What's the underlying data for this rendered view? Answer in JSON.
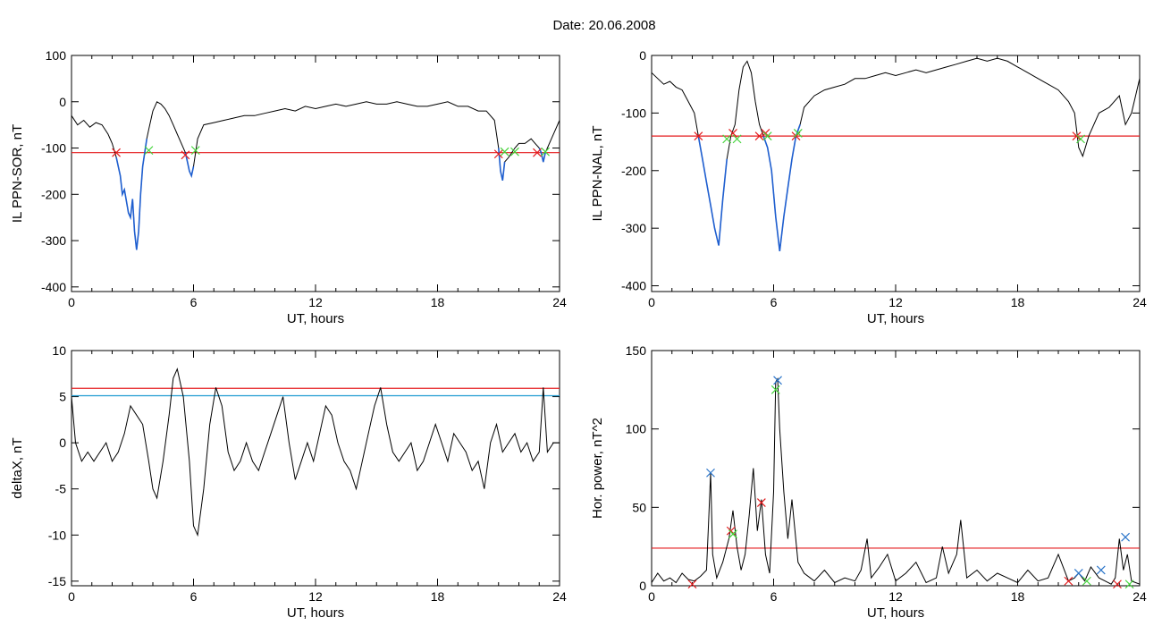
{
  "figure": {
    "header": "Date:  20.06.2008"
  },
  "colors": {
    "line": "#000000",
    "threshold": "#e41a1c",
    "secondary_threshold": "#1f9bd1",
    "segment": "#1f5fd0",
    "marker_red": "#e41a1c",
    "marker_green": "#43d43a",
    "marker_blue": "#2a74c9"
  },
  "chart_data": [
    {
      "type": "line",
      "xlabel": "UT, hours",
      "ylabel": "IL PPN-SOR, nT",
      "xlim": [
        0,
        24
      ],
      "ylim": [
        -410,
        100
      ],
      "xticks": [
        0,
        6,
        12,
        18,
        24
      ],
      "yticks": [
        100,
        0,
        -100,
        -200,
        -300,
        -400
      ],
      "threshold": -110,
      "series": [
        {
          "x": [
            0,
            0.3,
            0.6,
            0.9,
            1.2,
            1.5,
            1.8,
            2.0,
            2.2,
            2.4,
            2.5,
            2.6,
            2.8,
            2.9,
            3.0,
            3.1,
            3.2,
            3.3,
            3.4,
            3.5,
            3.6,
            3.7,
            3.8,
            3.9,
            4.0,
            4.2,
            4.4,
            4.6,
            4.8,
            5.0,
            5.2,
            5.4,
            5.6,
            5.7,
            5.8,
            5.9,
            6.0,
            6.2,
            6.5,
            7,
            7.5,
            8,
            8.5,
            9,
            9.5,
            10,
            10.5,
            11,
            11.5,
            12,
            12.5,
            13,
            13.5,
            14,
            14.5,
            15,
            15.5,
            16,
            16.5,
            17,
            17.5,
            18,
            18.5,
            19,
            19.5,
            20,
            20.4,
            20.8,
            21.0,
            21.1,
            21.2,
            21.3,
            21.5,
            21.8,
            22.0,
            22.3,
            22.6,
            22.8,
            23.0,
            23.1,
            23.2,
            23.3,
            23.4,
            23.6,
            23.8,
            24.0
          ],
          "y": [
            -30,
            -50,
            -40,
            -55,
            -45,
            -50,
            -70,
            -90,
            -120,
            -160,
            -200,
            -190,
            -240,
            -250,
            -210,
            -280,
            -320,
            -280,
            -200,
            -140,
            -110,
            -80,
            -60,
            -40,
            -20,
            0,
            -5,
            -15,
            -30,
            -50,
            -70,
            -90,
            -110,
            -130,
            -150,
            -160,
            -140,
            -80,
            -50,
            -45,
            -40,
            -35,
            -30,
            -30,
            -25,
            -20,
            -15,
            -20,
            -10,
            -15,
            -10,
            -5,
            -10,
            -5,
            0,
            -5,
            -5,
            0,
            -5,
            -10,
            -10,
            -5,
            0,
            -10,
            -10,
            -20,
            -20,
            -40,
            -100,
            -150,
            -170,
            -130,
            -120,
            -100,
            -90,
            -90,
            -80,
            -90,
            -100,
            -110,
            -130,
            -110,
            -100,
            -80,
            -60,
            -40
          ],
          "segments": [
            [
              2.2,
              3.7
            ],
            [
              5.6,
              6.0
            ],
            [
              21.0,
              21.3
            ],
            [
              23.0,
              23.3
            ]
          ]
        }
      ],
      "markers_red": [
        [
          2.2,
          -110
        ],
        [
          5.6,
          -115
        ],
        [
          21.0,
          -113
        ],
        [
          22.9,
          -110
        ]
      ],
      "markers_green": [
        [
          3.8,
          -105
        ],
        [
          6.1,
          -105
        ],
        [
          21.3,
          -108
        ],
        [
          21.8,
          -108
        ],
        [
          23.3,
          -108
        ]
      ]
    },
    {
      "type": "line",
      "xlabel": "UT, hours",
      "ylabel": "IL PPN-NAL, nT",
      "xlim": [
        0,
        24
      ],
      "ylim": [
        -410,
        0
      ],
      "xticks": [
        0,
        6,
        12,
        18,
        24
      ],
      "yticks": [
        0,
        -100,
        -200,
        -300,
        -400
      ],
      "threshold": -140,
      "series": [
        {
          "x": [
            0,
            0.3,
            0.6,
            0.9,
            1.2,
            1.5,
            1.8,
            2.1,
            2.3,
            2.5,
            2.7,
            2.9,
            3.1,
            3.3,
            3.5,
            3.7,
            3.9,
            4.1,
            4.3,
            4.5,
            4.7,
            4.9,
            5.1,
            5.3,
            5.5,
            5.7,
            5.9,
            6.1,
            6.3,
            6.5,
            6.7,
            6.9,
            7.1,
            7.3,
            7.5,
            8,
            8.5,
            9,
            9.5,
            10,
            10.5,
            11,
            11.5,
            12,
            12.5,
            13,
            13.5,
            14,
            14.5,
            15,
            15.5,
            16,
            16.5,
            17,
            17.5,
            18,
            18.5,
            19,
            19.5,
            20,
            20.5,
            20.8,
            21.0,
            21.2,
            21.5,
            22,
            22.5,
            23,
            23.3,
            23.6,
            24
          ],
          "y": [
            -30,
            -40,
            -50,
            -45,
            -55,
            -60,
            -80,
            -100,
            -140,
            -180,
            -220,
            -260,
            -300,
            -330,
            -250,
            -180,
            -140,
            -120,
            -60,
            -20,
            -10,
            -30,
            -80,
            -120,
            -140,
            -160,
            -200,
            -280,
            -340,
            -280,
            -230,
            -180,
            -140,
            -120,
            -90,
            -70,
            -60,
            -55,
            -50,
            -40,
            -40,
            -35,
            -30,
            -35,
            -30,
            -25,
            -30,
            -25,
            -20,
            -15,
            -10,
            -5,
            -10,
            -5,
            -10,
            -20,
            -30,
            -40,
            -50,
            -60,
            -80,
            -100,
            -160,
            -175,
            -140,
            -100,
            -90,
            -70,
            -120,
            -100,
            -40
          ],
          "segments": [
            [
              2.3,
              3.8
            ],
            [
              5.5,
              7.3
            ],
            [
              20.9,
              21.1
            ]
          ]
        }
      ],
      "markers_red": [
        [
          2.3,
          -140
        ],
        [
          4.0,
          -135
        ],
        [
          5.3,
          -140
        ],
        [
          5.6,
          -135
        ],
        [
          7.1,
          -140
        ],
        [
          20.9,
          -140
        ]
      ],
      "markers_green": [
        [
          3.7,
          -145
        ],
        [
          4.2,
          -145
        ],
        [
          5.7,
          -140
        ],
        [
          7.2,
          -135
        ],
        [
          21.1,
          -145
        ]
      ]
    },
    {
      "type": "line",
      "xlabel": "UT, hours",
      "ylabel": "deltaX, nT",
      "xlim": [
        0,
        24
      ],
      "ylim": [
        -15.5,
        10
      ],
      "xticks": [
        0,
        6,
        12,
        18,
        24
      ],
      "yticks": [
        10,
        5,
        0,
        -5,
        -10,
        -15
      ],
      "threshold": 5.9,
      "threshold2": 5.1,
      "series": [
        {
          "x": [
            0,
            0.2,
            0.5,
            0.8,
            1.1,
            1.4,
            1.7,
            2.0,
            2.3,
            2.6,
            2.9,
            3.2,
            3.5,
            3.8,
            4.0,
            4.2,
            4.5,
            4.8,
            5.0,
            5.2,
            5.5,
            5.8,
            6.0,
            6.2,
            6.5,
            6.8,
            7.1,
            7.4,
            7.7,
            8.0,
            8.3,
            8.6,
            8.9,
            9.2,
            9.5,
            9.8,
            10.1,
            10.4,
            10.7,
            11.0,
            11.3,
            11.6,
            11.9,
            12.2,
            12.5,
            12.8,
            13.1,
            13.4,
            13.7,
            14.0,
            14.3,
            14.6,
            14.9,
            15.2,
            15.5,
            15.8,
            16.1,
            16.4,
            16.7,
            17.0,
            17.3,
            17.6,
            17.9,
            18.2,
            18.5,
            18.8,
            19.1,
            19.4,
            19.7,
            20.0,
            20.3,
            20.6,
            20.9,
            21.2,
            21.5,
            21.8,
            22.1,
            22.4,
            22.7,
            23.0,
            23.2,
            23.4,
            23.7,
            24
          ],
          "y": [
            5,
            0,
            -2,
            -1,
            -2,
            -1,
            0,
            -2,
            -1,
            1,
            4,
            3,
            2,
            -2,
            -5,
            -6,
            -2,
            3,
            7,
            8,
            5,
            -2,
            -9,
            -10,
            -5,
            2,
            6,
            4,
            -1,
            -3,
            -2,
            0,
            -2,
            -3,
            -1,
            1,
            3,
            5,
            0,
            -4,
            -2,
            0,
            -2,
            1,
            4,
            3,
            0,
            -2,
            -3,
            -5,
            -2,
            1,
            4,
            6,
            2,
            -1,
            -2,
            -1,
            0,
            -3,
            -2,
            0,
            2,
            0,
            -2,
            1,
            0,
            -1,
            -3,
            -2,
            -5,
            0,
            2,
            -1,
            0,
            1,
            -1,
            0,
            -2,
            -1,
            6,
            -1,
            0,
            0
          ]
        }
      ]
    },
    {
      "type": "line",
      "xlabel": "UT, hours",
      "ylabel": "Hor. power, nT^2",
      "xlim": [
        0,
        24
      ],
      "ylim": [
        0,
        150
      ],
      "xticks": [
        0,
        6,
        12,
        18,
        24
      ],
      "yticks": [
        150,
        100,
        50,
        0
      ],
      "threshold": 24,
      "series": [
        {
          "x": [
            0,
            0.3,
            0.6,
            0.9,
            1.2,
            1.5,
            1.8,
            2.1,
            2.4,
            2.7,
            2.8,
            2.9,
            3.0,
            3.2,
            3.5,
            3.8,
            4.0,
            4.2,
            4.4,
            4.6,
            4.8,
            5.0,
            5.2,
            5.4,
            5.6,
            5.8,
            6.0,
            6.1,
            6.2,
            6.3,
            6.5,
            6.7,
            6.9,
            7.2,
            7.5,
            8,
            8.5,
            9,
            9.5,
            10,
            10.3,
            10.6,
            10.8,
            11.2,
            11.6,
            12,
            12.5,
            13,
            13.5,
            14,
            14.3,
            14.6,
            15,
            15.2,
            15.5,
            16,
            16.5,
            17,
            17.5,
            18,
            18.5,
            19,
            19.5,
            20,
            20.5,
            20.8,
            21.0,
            21.3,
            21.6,
            22.0,
            22.3,
            22.6,
            22.8,
            23.0,
            23.2,
            23.4,
            23.6,
            24
          ],
          "y": [
            2,
            8,
            3,
            5,
            2,
            8,
            4,
            3,
            6,
            10,
            40,
            72,
            20,
            5,
            15,
            30,
            48,
            25,
            10,
            20,
            45,
            75,
            35,
            55,
            20,
            8,
            60,
            130,
            132,
            100,
            60,
            30,
            55,
            15,
            8,
            3,
            10,
            2,
            5,
            3,
            10,
            30,
            5,
            12,
            20,
            3,
            8,
            15,
            2,
            5,
            25,
            8,
            20,
            42,
            5,
            10,
            3,
            8,
            5,
            2,
            10,
            3,
            5,
            20,
            3,
            5,
            8,
            3,
            12,
            5,
            3,
            1,
            5,
            30,
            10,
            20,
            3,
            1
          ]
        }
      ],
      "markers_red": [
        [
          2.0,
          1
        ],
        [
          3.9,
          35
        ],
        [
          5.4,
          53
        ],
        [
          20.5,
          3
        ],
        [
          22.9,
          1
        ]
      ],
      "markers_green": [
        [
          4.0,
          33
        ],
        [
          6.1,
          125
        ],
        [
          21.4,
          3
        ],
        [
          23.5,
          1
        ]
      ],
      "markers_blue": [
        [
          2.9,
          72
        ],
        [
          6.2,
          131
        ],
        [
          21.0,
          8
        ],
        [
          22.1,
          10
        ],
        [
          23.3,
          31
        ]
      ]
    }
  ]
}
